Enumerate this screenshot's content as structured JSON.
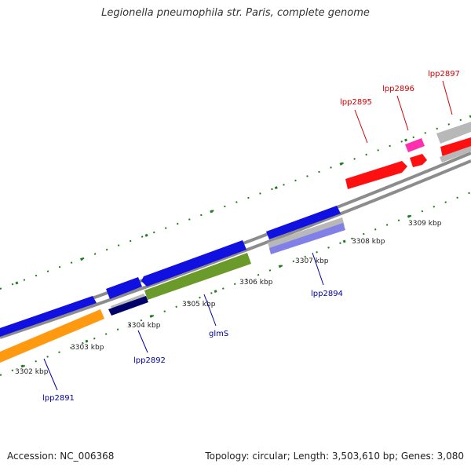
{
  "title": "Legionella pneumophila str. Paris, complete genome",
  "accession_text": "Accession: NC_006368",
  "summary_text": "Topology: circular; Length: 3,503,610 bp; Genes: 3,080",
  "colors": {
    "backbone": "#8c8c8c",
    "tick": "#1f7a1f",
    "gene_label_forward": "#d40000",
    "gene_label_reverse": "#0000a0",
    "cds_blue": "#1010e0",
    "cds_orange": "#ff9a10",
    "cds_olive": "#6a9a2a",
    "cds_navy": "#00006a",
    "cds_gray": "#b8b8b8",
    "cds_lavender": "#8080e8",
    "cds_red": "#ff1010",
    "cds_pink": "#ff30b0"
  },
  "scale_labels": [
    "3302 kbp",
    "3303 kbp",
    "3304 kbp",
    "3305 kbp",
    "3306 kbp",
    "3307 kbp",
    "3308 kbp",
    "3309 kbp"
  ],
  "gene_labels": [
    "lpp2891",
    "lpp2892",
    "glmS",
    "lpp2894",
    "lpp2895",
    "lpp2896",
    "lpp2897"
  ]
}
